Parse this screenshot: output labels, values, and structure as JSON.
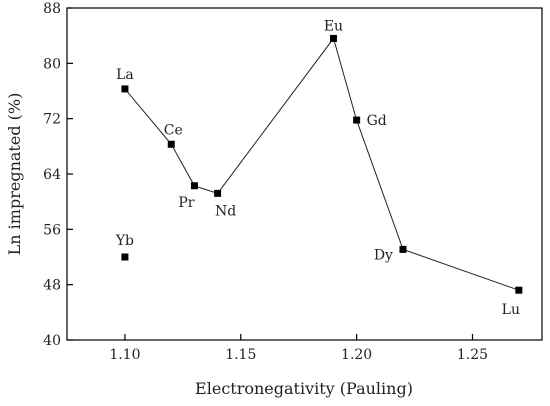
{
  "chart_data": {
    "type": "scatter",
    "xlabel": "Electronegativity (Pauling)",
    "ylabel": "Ln impregnated (%)",
    "xlim": [
      1.075,
      1.28
    ],
    "ylim": [
      40,
      88
    ],
    "xticks": [
      "1.10",
      "1.15",
      "1.20",
      "1.25"
    ],
    "yticks": [
      "40",
      "48",
      "56",
      "64",
      "72",
      "80",
      "88"
    ],
    "grid": false,
    "marker_color": "#000000",
    "series": [
      {
        "connected": true,
        "points": [
          {
            "label": "La",
            "x": 1.1,
            "y": 76.3
          },
          {
            "label": "Ce",
            "x": 1.12,
            "y": 68.3
          },
          {
            "label": "Pr",
            "x": 1.13,
            "y": 62.3
          },
          {
            "label": "Nd",
            "x": 1.14,
            "y": 61.2
          },
          {
            "label": "Eu",
            "x": 1.19,
            "y": 83.6
          },
          {
            "label": "Gd",
            "x": 1.2,
            "y": 71.8
          },
          {
            "label": "Dy",
            "x": 1.22,
            "y": 53.1
          },
          {
            "label": "Lu",
            "x": 1.27,
            "y": 47.2
          }
        ]
      },
      {
        "connected": false,
        "points": [
          {
            "label": "Yb",
            "x": 1.1,
            "y": 52.0
          }
        ]
      }
    ]
  }
}
